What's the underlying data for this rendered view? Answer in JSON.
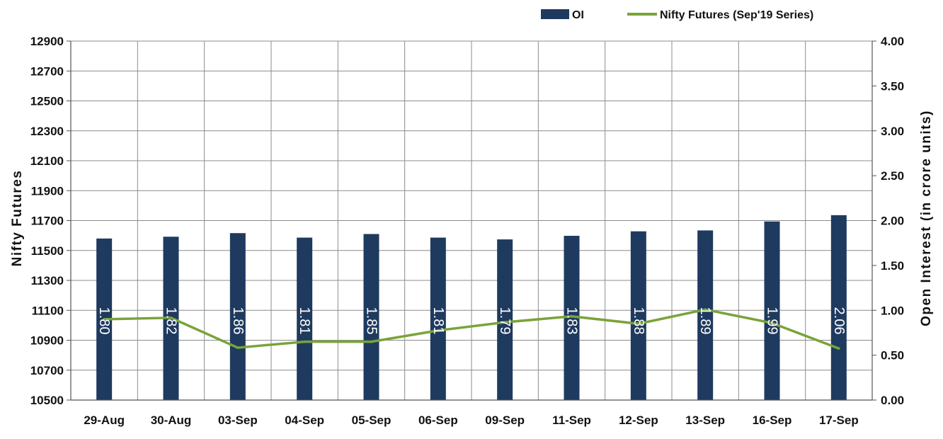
{
  "chart_data": {
    "type": "bar",
    "categories": [
      "29-Aug",
      "30-Aug",
      "03-Sep",
      "04-Sep",
      "05-Sep",
      "06-Sep",
      "09-Sep",
      "11-Sep",
      "12-Sep",
      "13-Sep",
      "16-Sep",
      "17-Sep"
    ],
    "series": [
      {
        "name": "OI",
        "type": "bar",
        "axis": "right",
        "color": "#1f3a5f",
        "values": [
          1.8,
          1.82,
          1.86,
          1.81,
          1.85,
          1.81,
          1.79,
          1.83,
          1.88,
          1.89,
          1.99,
          2.06
        ],
        "data_labels": [
          "1.80",
          "1.82",
          "1.86",
          "1.81",
          "1.85",
          "1.81",
          "1.79",
          "1.83",
          "1.88",
          "1.89",
          "1.99",
          "2.06"
        ]
      },
      {
        "name": "Nifty Futures (Sep'19 Series)",
        "type": "line",
        "axis": "left",
        "color": "#7aa33a",
        "values": [
          11040,
          11050,
          10850,
          10890,
          10890,
          10965,
          11020,
          11060,
          11010,
          11105,
          11015,
          10845
        ]
      }
    ],
    "ylabel": "Nifty Futures",
    "y2label": "Open Interest (in crore units)",
    "ylim": [
      10500,
      12900
    ],
    "y2lim": [
      0,
      4
    ],
    "yticks": [
      "10500",
      "10700",
      "10900",
      "11100",
      "11300",
      "11500",
      "11700",
      "11900",
      "12100",
      "12300",
      "12500",
      "12700",
      "12900"
    ],
    "y2ticks": [
      "0.00",
      "0.50",
      "1.00",
      "1.50",
      "2.00",
      "2.50",
      "3.00",
      "3.50",
      "4.00"
    ],
    "grid": true,
    "legend_position": "top-right"
  }
}
